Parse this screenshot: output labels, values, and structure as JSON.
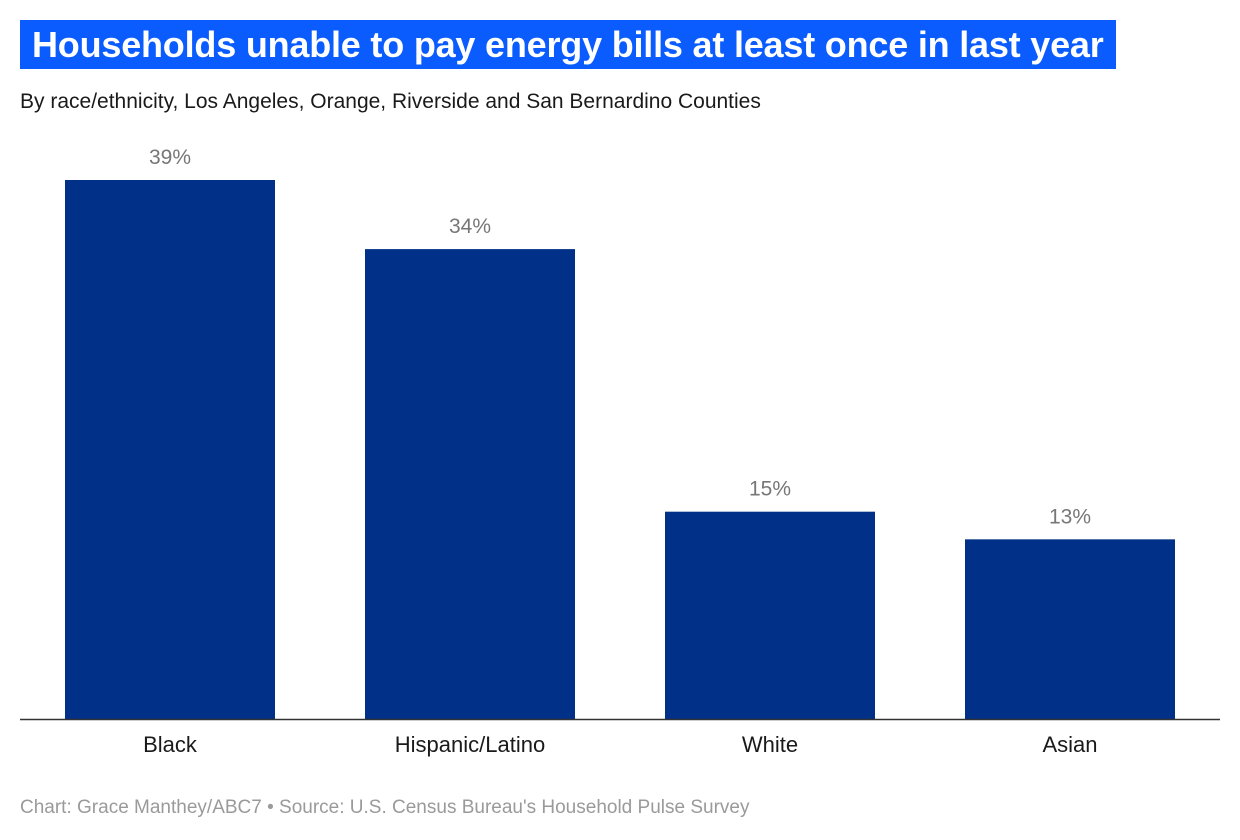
{
  "chart_data": {
    "type": "bar",
    "title": "Households unable to pay energy bills at least once in last year",
    "subtitle": "By race/ethnicity, Los Angeles, Orange, Riverside and San Bernardino Counties",
    "categories": [
      "Black",
      "Hispanic/Latino",
      "White",
      "Asian"
    ],
    "values": [
      39,
      34,
      15,
      13
    ],
    "value_suffix": "%",
    "xlabel": "",
    "ylabel": "",
    "ylim": [
      0,
      40
    ],
    "grid": false,
    "legend": "none",
    "bar_color": "#003087",
    "label_color": "#777777",
    "axis_color": "#333333"
  },
  "footer": {
    "credit": "Chart: Grace Manthey/ABC7 • Source: U.S. Census Bureau's Household Pulse Survey"
  },
  "colors": {
    "title_background": "#0a5cff",
    "title_text": "#ffffff"
  }
}
